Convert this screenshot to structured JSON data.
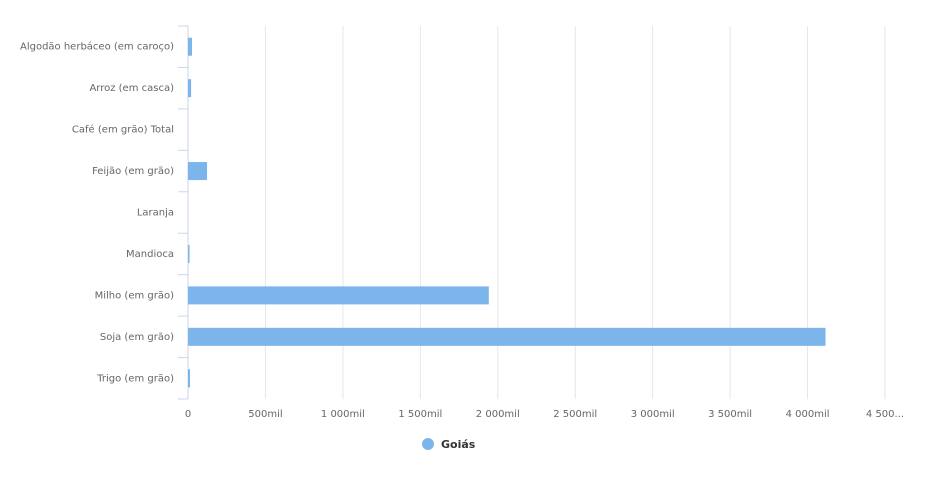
{
  "chart_data": {
    "type": "bar",
    "orientation": "horizontal",
    "categories": [
      "Algodão herbáceo (em caroço)",
      "Arroz (em casca)",
      "Café (em grão) Total",
      "Feijão (em grão)",
      "Laranja",
      "Mandioca",
      "Milho (em grão)",
      "Soja (em grão)",
      "Trigo (em grão)"
    ],
    "series": [
      {
        "name": "Goiás",
        "color": "#7cb5ec",
        "values": [
          26000,
          20000,
          0,
          123000,
          0,
          10000,
          1942000,
          4116000,
          13000
        ]
      }
    ],
    "xlim": [
      0,
      4500000
    ],
    "xticks": [
      0,
      {
        "value": 500000,
        "label": "500mil"
      },
      {
        "value": 1000000,
        "label": "1 000mil"
      },
      {
        "value": 1500000,
        "label": "1 500mil"
      },
      {
        "value": 2000000,
        "label": "2 000mil"
      },
      {
        "value": 2500000,
        "label": "2 500mil"
      },
      {
        "value": 3000000,
        "label": "3 000mil"
      },
      {
        "value": 3500000,
        "label": "3 500mil"
      },
      {
        "value": 4000000,
        "label": "4 000mil"
      },
      {
        "value": 4500000,
        "label": "4 500..."
      }
    ],
    "grid": true
  }
}
